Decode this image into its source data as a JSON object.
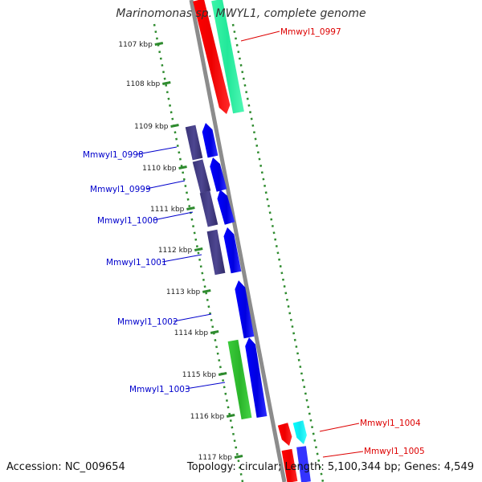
{
  "title": "Marinomonas sp. MWYL1, complete genome",
  "footer": {
    "accession": "Accession: NC_009654",
    "topology": "Topology: circular; Length: 5,100,344 bp; Genes: 4,549"
  },
  "colors": {
    "backbone": "#8a8a8a",
    "tick": "#2e8b2e",
    "forward_label": "#0000cc",
    "reverse_label": "#dd0000"
  },
  "scale_ticks": [
    {
      "label": "1107 kbp"
    },
    {
      "label": "1108 kbp"
    },
    {
      "label": "1109 kbp"
    },
    {
      "label": "1110 kbp"
    },
    {
      "label": "1111 kbp"
    },
    {
      "label": "1112 kbp"
    },
    {
      "label": "1113 kbp"
    },
    {
      "label": "1114 kbp"
    },
    {
      "label": "1115 kbp"
    },
    {
      "label": "1116 kbp"
    },
    {
      "label": "1117 kbp"
    }
  ],
  "gene_labels": [
    {
      "id": "Mmwyl1_0997",
      "strand": "reverse"
    },
    {
      "id": "Mmwyl1_0998",
      "strand": "forward"
    },
    {
      "id": "Mmwyl1_0999",
      "strand": "forward"
    },
    {
      "id": "Mmwyl1_1000",
      "strand": "forward"
    },
    {
      "id": "Mmwyl1_1001",
      "strand": "forward"
    },
    {
      "id": "Mmwyl1_1002",
      "strand": "forward"
    },
    {
      "id": "Mmwyl1_1003",
      "strand": "forward"
    },
    {
      "id": "Mmwyl1_1004",
      "strand": "reverse"
    },
    {
      "id": "Mmwyl1_1005",
      "strand": "reverse"
    }
  ]
}
